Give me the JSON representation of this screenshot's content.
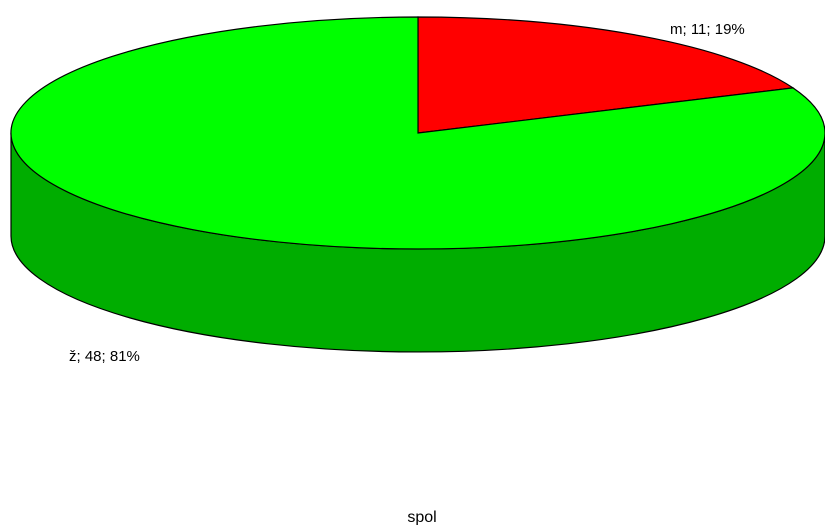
{
  "chart_data": {
    "type": "pie",
    "style": "3d",
    "title": "",
    "xlabel": "spol",
    "slices": [
      {
        "category": "m",
        "value": 11,
        "percent": 19,
        "label": "m; 11; 19%",
        "color": "#ff0000"
      },
      {
        "category": "ž",
        "value": 48,
        "percent": 81,
        "label": "ž; 48; 81%",
        "color": "#00ff00"
      }
    ]
  }
}
